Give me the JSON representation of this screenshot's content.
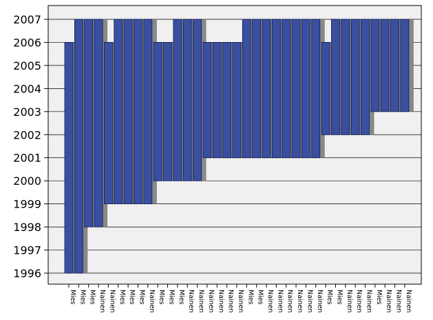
{
  "colors": {
    "plot_background": "#f0f0f0",
    "bar_fill": "#3a4fa0",
    "bar_stroke": "#0e1a4e",
    "bar_shadow": "#888888",
    "gridline": "#000000",
    "frame": "#000000"
  },
  "chart_data": {
    "type": "bar",
    "title": "",
    "xlabel": "",
    "ylabel": "",
    "ylim": [
      1996,
      2007
    ],
    "yticks": [
      "1996",
      "1997",
      "1998",
      "1999",
      "2000",
      "2001",
      "2002",
      "2003",
      "2004",
      "2005",
      "2006",
      "2007"
    ],
    "grid": true,
    "legend": "none",
    "bar_baseline": "top",
    "categories": [
      "Mies",
      "Mies",
      "Mies",
      "Nainen",
      "Nainen",
      "Mies",
      "Mies",
      "Mies",
      "Nainen",
      "Mies",
      "Mies",
      "Mies",
      "Nainen",
      "Nainen",
      "Nainen",
      "Nainen",
      "Nainen",
      "Nainen",
      "Mies",
      "Mies",
      "Nainen",
      "Nainen",
      "Nainen",
      "Nainen",
      "Nainen",
      "Nainen",
      "Mies",
      "Mies",
      "Nainen",
      "Nainen",
      "Nainen",
      "Mies",
      "Nainen",
      "Nainen",
      "Nainen"
    ],
    "values": [
      1996,
      1996,
      1998,
      1998,
      1999,
      1999,
      1999,
      1999,
      1999,
      2000,
      2000,
      2000,
      2000,
      2000,
      2001,
      2001,
      2001,
      2001,
      2001,
      2001,
      2001,
      2001,
      2001,
      2001,
      2001,
      2001,
      2002,
      2002,
      2002,
      2002,
      2002,
      2003,
      2003,
      2003,
      2003
    ],
    "tops": [
      2006,
      2007,
      2007,
      2007,
      2006,
      2007,
      2007,
      2007,
      2007,
      2006,
      2006,
      2007,
      2007,
      2007,
      2006,
      2006,
      2006,
      2006,
      2007,
      2007,
      2007,
      2007,
      2007,
      2007,
      2007,
      2007,
      2006,
      2007,
      2007,
      2007,
      2007,
      2007,
      2007,
      2007,
      2007
    ]
  }
}
